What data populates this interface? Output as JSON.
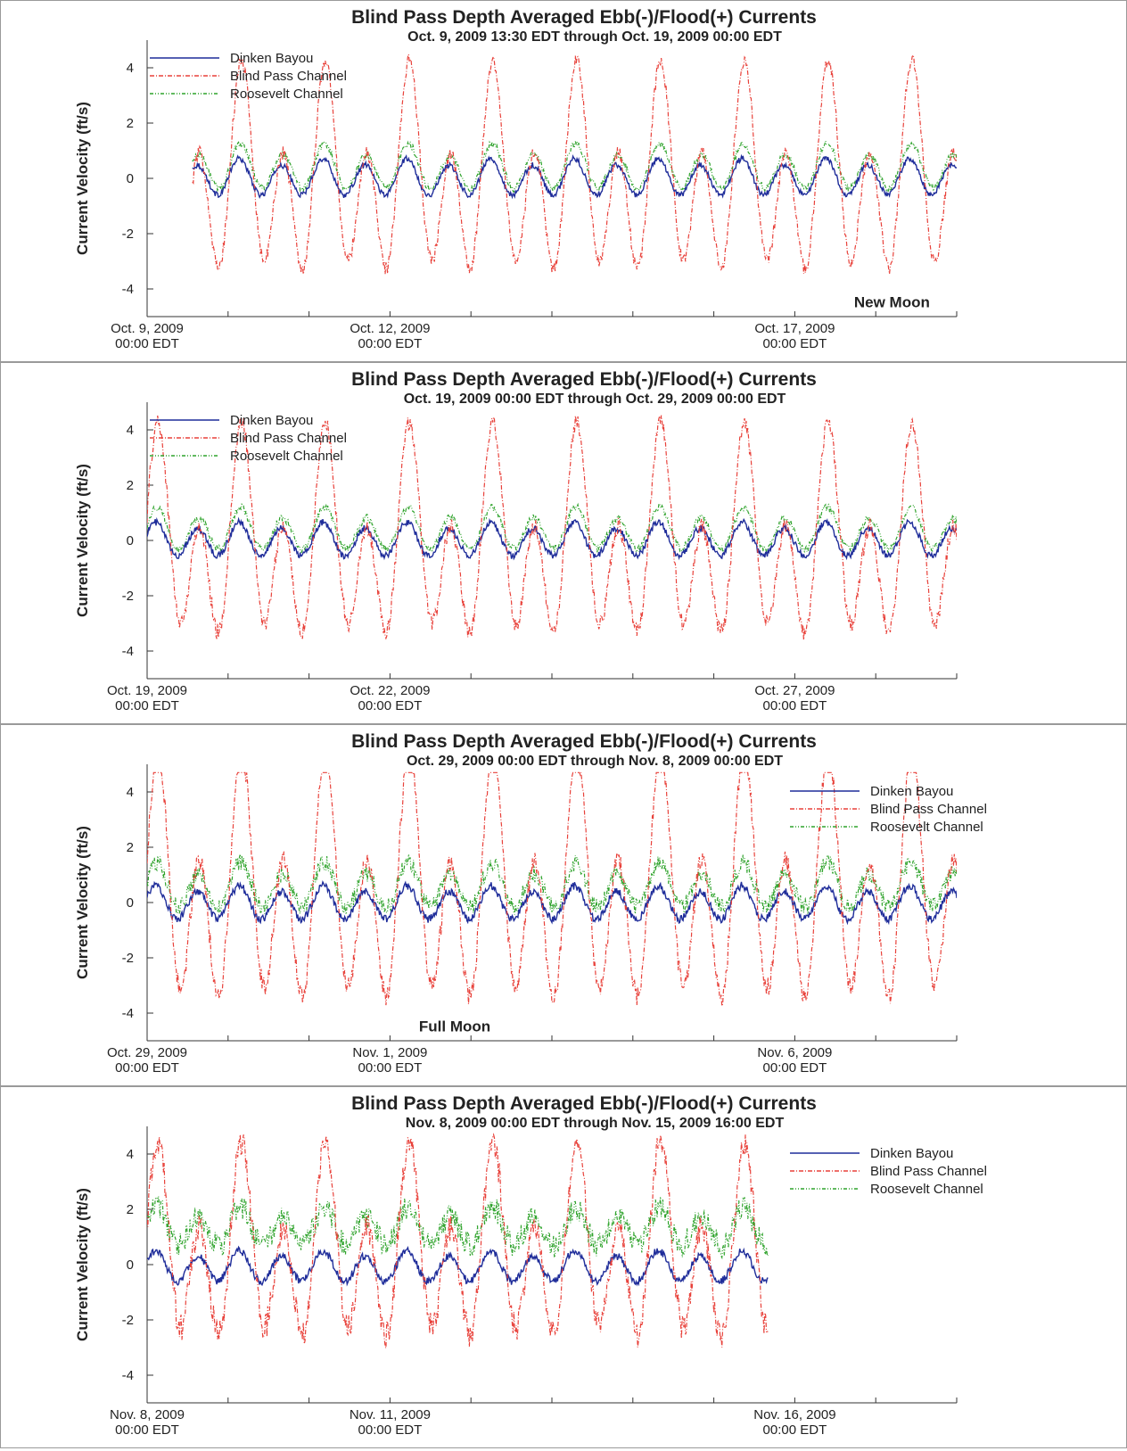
{
  "colors": {
    "dinken": "#1f2d9a",
    "blind": "#e8413a",
    "roosevelt": "#2fa32c",
    "axis": "#333333",
    "frame": "#9a9a9a"
  },
  "chart_data": [
    {
      "type": "line",
      "title": "Blind Pass Depth Averaged Ebb(-)/Flood(+) Currents",
      "subtitle": "Oct. 9, 2009 13:30 EDT through Oct. 19, 2009 00:00 EDT",
      "ylabel": "Current Velocity (ft/s)",
      "xlabel": "",
      "x_range_days": [
        0,
        10
      ],
      "ylim": [
        -5,
        5
      ],
      "yticks": [
        -4,
        -2,
        0,
        2,
        4
      ],
      "xtick_labels": [
        {
          "at_day": 0,
          "date": "Oct. 9, 2009",
          "time": "00:00 EDT"
        },
        {
          "at_day": 3,
          "date": "Oct. 12, 2009",
          "time": "00:00 EDT"
        },
        {
          "at_day": 8,
          "date": "Oct. 17, 2009",
          "time": "00:00 EDT"
        }
      ],
      "legend_position": "top-left",
      "annotation": {
        "text": "New Moon",
        "at_day": 9.2,
        "y": -4.5
      },
      "series": [
        {
          "name": "Dinken Bayou",
          "color_key": "dinken",
          "start_day": 0.56,
          "end_day": 10,
          "amp": 0.6,
          "offset": 0.0,
          "diurnal": 0.2,
          "phase": 0.3,
          "noise": 0.05
        },
        {
          "name": "Blind Pass Channel",
          "color_key": "blind",
          "start_day": 0.56,
          "end_day": 10,
          "amp": 2.8,
          "offset": -0.2,
          "diurnal": 0.6,
          "phase": 0.0,
          "noise": 0.12
        },
        {
          "name": "Roosevelt Channel",
          "color_key": "roosevelt",
          "start_day": 0.56,
          "end_day": 10,
          "amp": 0.7,
          "offset": 0.35,
          "diurnal": 0.3,
          "phase": 0.1,
          "noise": 0.07
        }
      ]
    },
    {
      "type": "line",
      "title": "Blind Pass Depth Averaged Ebb(-)/Flood(+) Currents",
      "subtitle": "Oct. 19, 2009 00:00 EDT through Oct. 29, 2009 00:00 EDT",
      "ylabel": "Current Velocity (ft/s)",
      "xlabel": "",
      "x_range_days": [
        0,
        10
      ],
      "ylim": [
        -5,
        5
      ],
      "yticks": [
        -4,
        -2,
        0,
        2,
        4
      ],
      "xtick_labels": [
        {
          "at_day": 0,
          "date": "Oct. 19, 2009",
          "time": "00:00 EDT"
        },
        {
          "at_day": 3,
          "date": "Oct. 22, 2009",
          "time": "00:00 EDT"
        },
        {
          "at_day": 8,
          "date": "Oct. 27, 2009",
          "time": "00:00 EDT"
        }
      ],
      "legend_position": "top-left",
      "series": [
        {
          "name": "Dinken Bayou",
          "color_key": "dinken",
          "start_day": 0,
          "end_day": 10,
          "amp": 0.55,
          "offset": 0.0,
          "diurnal": 0.2,
          "phase": 0.3,
          "noise": 0.06
        },
        {
          "name": "Blind Pass Channel",
          "color_key": "blind",
          "start_day": 0,
          "end_day": 10,
          "amp": 2.7,
          "offset": -0.3,
          "diurnal": 0.7,
          "phase": 0.0,
          "noise": 0.15
        },
        {
          "name": "Roosevelt Channel",
          "color_key": "roosevelt",
          "start_day": 0,
          "end_day": 10,
          "amp": 0.65,
          "offset": 0.35,
          "diurnal": 0.3,
          "phase": 0.1,
          "noise": 0.07
        }
      ]
    },
    {
      "type": "line",
      "title": "Blind Pass Depth Averaged Ebb(-)/Flood(+) Currents",
      "subtitle": "Oct. 29, 2009 00:00 EDT through Nov. 8, 2009 00:00 EDT",
      "ylabel": "Current Velocity (ft/s)",
      "xlabel": "",
      "x_range_days": [
        0,
        10
      ],
      "ylim": [
        -5,
        5
      ],
      "yticks": [
        -4,
        -2,
        0,
        2,
        4
      ],
      "xtick_labels": [
        {
          "at_day": 0,
          "date": "Oct. 29, 2009",
          "time": "00:00 EDT"
        },
        {
          "at_day": 3,
          "date": "Nov. 1, 2009",
          "time": "00:00 EDT"
        },
        {
          "at_day": 8,
          "date": "Nov. 6, 2009",
          "time": "00:00 EDT"
        }
      ],
      "legend_position": "right",
      "annotation": {
        "text": "Full Moon",
        "at_day": 3.8,
        "y": -4.5
      },
      "series": [
        {
          "name": "Dinken Bayou",
          "color_key": "dinken",
          "start_day": 0,
          "end_day": 10,
          "amp": 0.55,
          "offset": -0.05,
          "diurnal": 0.2,
          "phase": 0.3,
          "noise": 0.07
        },
        {
          "name": "Blind Pass Channel",
          "color_key": "blind",
          "start_day": 0,
          "end_day": 10,
          "amp": 3.3,
          "offset": 0.2,
          "diurnal": 0.6,
          "phase": 0.0,
          "noise": 0.18
        },
        {
          "name": "Roosevelt Channel",
          "color_key": "roosevelt",
          "start_day": 0,
          "end_day": 10,
          "amp": 0.7,
          "offset": 0.55,
          "diurnal": 0.3,
          "phase": 0.1,
          "noise": 0.15
        }
      ]
    },
    {
      "type": "line",
      "title": "Blind Pass Depth Averaged Ebb(-)/Flood(+) Currents",
      "subtitle": "Nov. 8, 2009 00:00 EDT through Nov. 15, 2009 16:00 EDT",
      "ylabel": "Current Velocity (ft/s)",
      "xlabel": "",
      "x_range_days": [
        0,
        10
      ],
      "ylim": [
        -5,
        5
      ],
      "yticks": [
        -4,
        -2,
        0,
        2,
        4
      ],
      "xtick_labels": [
        {
          "at_day": 0,
          "date": "Nov. 8, 2009",
          "time": "00:00 EDT"
        },
        {
          "at_day": 3,
          "date": "Nov. 11, 2009",
          "time": "00:00 EDT"
        },
        {
          "at_day": 8,
          "date": "Nov. 16, 2009",
          "time": "00:00 EDT"
        }
      ],
      "legend_position": "right",
      "series": [
        {
          "name": "Dinken Bayou",
          "color_key": "dinken",
          "start_day": 0,
          "end_day": 7.67,
          "amp": 0.5,
          "offset": -0.1,
          "diurnal": 0.2,
          "phase": 0.3,
          "noise": 0.07
        },
        {
          "name": "Blind Pass Channel",
          "color_key": "blind",
          "start_day": 0,
          "end_day": 7.67,
          "amp": 2.6,
          "offset": 0.3,
          "diurnal": 0.6,
          "phase": 0.0,
          "noise": 0.25
        },
        {
          "name": "Roosevelt Channel",
          "color_key": "roosevelt",
          "start_day": 0,
          "end_day": 7.67,
          "amp": 0.6,
          "offset": 1.3,
          "diurnal": 0.3,
          "phase": 0.1,
          "noise": 0.22
        }
      ]
    }
  ]
}
